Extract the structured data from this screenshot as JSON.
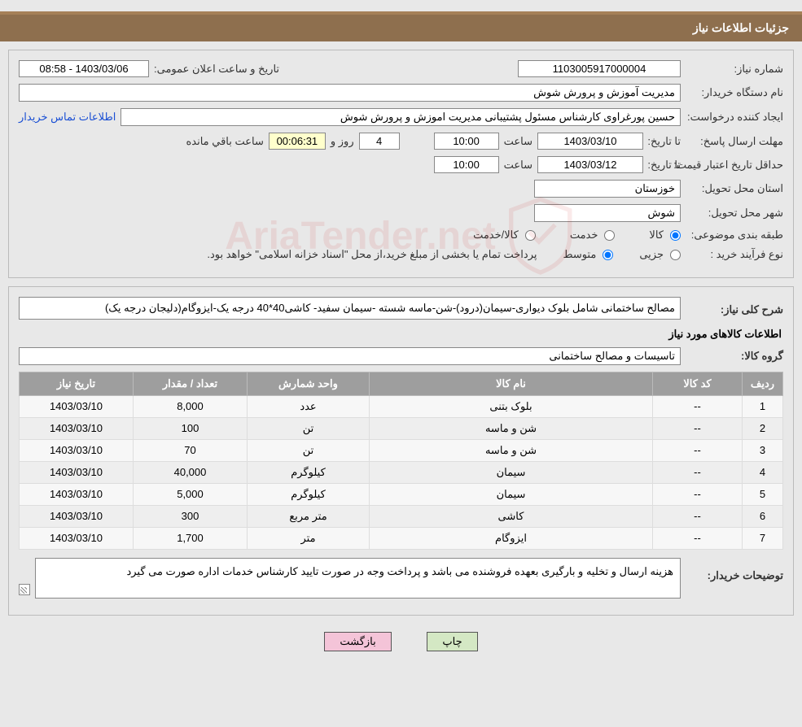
{
  "header": {
    "title": "جزئیات اطلاعات نیاز"
  },
  "fields": {
    "need_no_label": "شماره نیاز:",
    "need_no": "1103005917000004",
    "datetime_label": "تاریخ و ساعت اعلان عمومی:",
    "datetime": "1403/03/06 - 08:58",
    "buyer_label": "نام دستگاه خریدار:",
    "buyer": "مدیریت آموزش و پرورش شوش",
    "requester_label": "ایجاد کننده درخواست:",
    "requester": "حسین پورغراوی کارشناس مسئول پشتیبانی مدیریت اموزش و پرورش شوش",
    "contact_link": "اطلاعات تماس خریدار",
    "deadline_label": "مهلت ارسال پاسخ:",
    "to_date_label": "تا تاریخ:",
    "deadline_date": "1403/03/10",
    "hour_label": "ساعت",
    "deadline_hour": "10:00",
    "days_label": "روز و",
    "days_remain": "4",
    "time_remain": "00:06:31",
    "remain_label": "ساعت باقي مانده",
    "validity_label": "حداقل تاریخ اعتبار قیمت:",
    "validity_date": "1403/03/12",
    "validity_hour": "10:00",
    "province_label": "استان محل تحویل:",
    "province": "خوزستان",
    "city_label": "شهر محل تحویل:",
    "city": "شوش",
    "category_label": "طبقه بندی موضوعی:",
    "cat_goods": "کالا",
    "cat_service": "خدمت",
    "cat_goods_service": "کالا/خدمت",
    "purchase_type_label": "نوع فرآیند خرید :",
    "type_partial": "جزیی",
    "type_medium": "متوسط",
    "purchase_note": "پرداخت تمام یا بخشی از مبلغ خرید،از محل \"اسناد خزانه اسلامی\" خواهد بود.",
    "desc_label": "شرح کلی نیاز:",
    "desc": "مصالح ساختمانی شامل بلوک دیواری-سیمان(درود)-شن-ماسه شسته -سیمان سفید- کاشی40*40 درجه یک-ایزوگام(دلیجان درجه یک)",
    "items_title": "اطلاعات كالاهای مورد نیاز",
    "group_label": "گروه کالا:",
    "group": "تاسیسات و مصالح ساختمانی",
    "buyer_note_label": "توضیحات خریدار:",
    "buyer_note": "هزینه ارسال و تخلیه و بارگیری بعهده فروشنده می باشد و پرداخت وجه در صورت تایید کارشناس خدمات اداره صورت می گیرد"
  },
  "table": {
    "headers": [
      "ردیف",
      "کد کالا",
      "نام کالا",
      "واحد شمارش",
      "تعداد / مقدار",
      "تاریخ نیاز"
    ],
    "rows": [
      [
        "1",
        "--",
        "بلوک بتنی",
        "عدد",
        "8,000",
        "1403/03/10"
      ],
      [
        "2",
        "--",
        "شن و ماسه",
        "تن",
        "100",
        "1403/03/10"
      ],
      [
        "3",
        "--",
        "شن و ماسه",
        "تن",
        "70",
        "1403/03/10"
      ],
      [
        "4",
        "--",
        "سیمان",
        "کیلوگرم",
        "40,000",
        "1403/03/10"
      ],
      [
        "5",
        "--",
        "سیمان",
        "کیلوگرم",
        "5,000",
        "1403/03/10"
      ],
      [
        "6",
        "--",
        "کاشی",
        "متر مربع",
        "300",
        "1403/03/10"
      ],
      [
        "7",
        "--",
        "ایزوگام",
        "متر",
        "1,700",
        "1403/03/10"
      ]
    ]
  },
  "buttons": {
    "print": "چاپ",
    "back": "بازگشت"
  },
  "watermark": "AriaTender.net"
}
